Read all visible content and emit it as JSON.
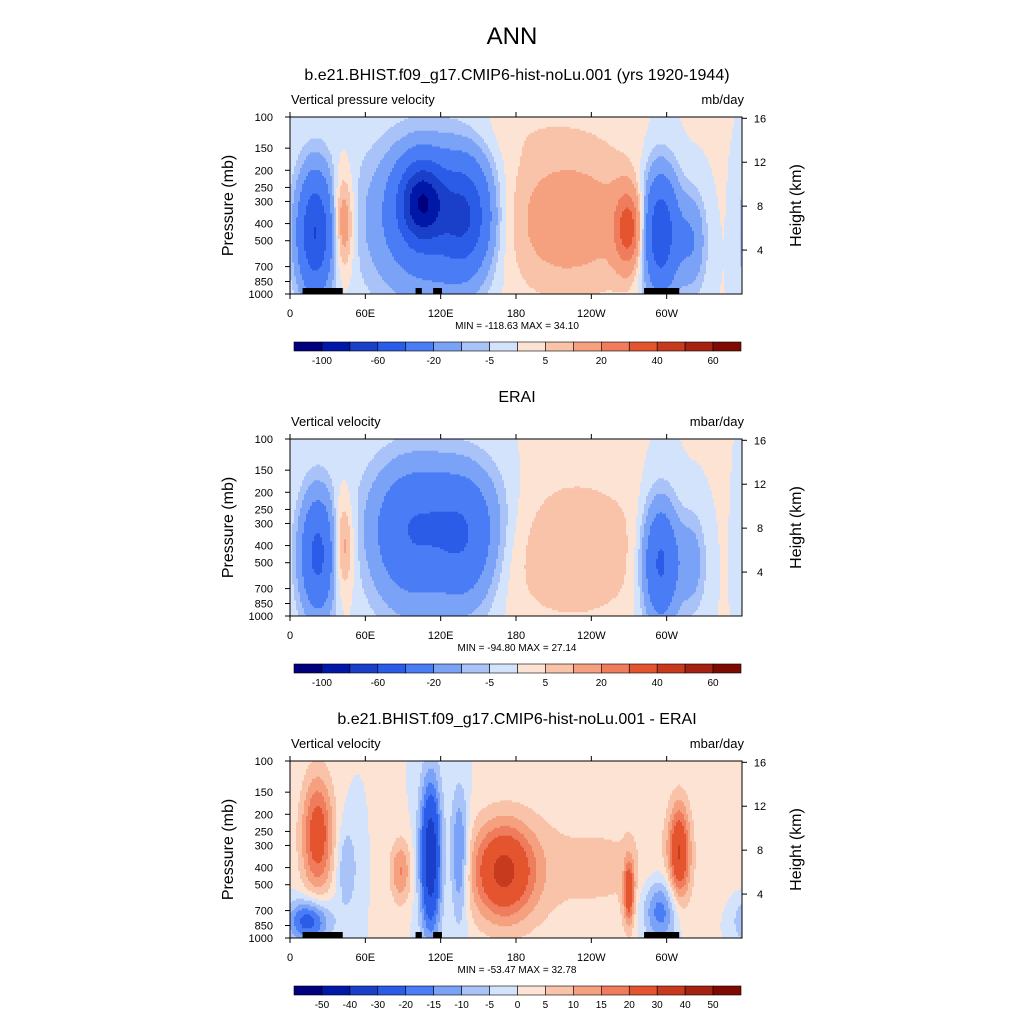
{
  "figure": {
    "main_title": "ANN",
    "colors": {
      "obs_scale": [
        "#00007f",
        "#0018a8",
        "#1a3fc8",
        "#2a5ce8",
        "#4a7cf5",
        "#7aa2f7",
        "#a9c3f9",
        "#d4e3fc",
        "#fde3d3",
        "#f9c3a9",
        "#f5a17f",
        "#ef7c5c",
        "#e4552f",
        "#c83a1e",
        "#a52211",
        "#7f0a02"
      ],
      "diff_scale": [
        "#00007f",
        "#0018a8",
        "#1a3fc8",
        "#2a5ce8",
        "#4a7cf5",
        "#7aa2f7",
        "#a9c3f9",
        "#d4e3fc",
        "#fde3d3",
        "#f9c3a9",
        "#f5a17f",
        "#ef7c5c",
        "#e4552f",
        "#c83a1e",
        "#a52211",
        "#7f0a02"
      ],
      "land_mask": "#000000"
    }
  },
  "chart_data": [
    {
      "type": "heatmap",
      "title": "b.e21.BHIST.f09_g17.CMIP6-hist-noLu.001 (yrs 1920-1944)",
      "left_label": "Vertical pressure velocity",
      "right_label": "mb/day",
      "ylabel": "Pressure (mb)",
      "ylabel_right": "Height (km)",
      "x_ticks": [
        "0",
        "60E",
        "120E",
        "180",
        "120W",
        "60W"
      ],
      "x_tick_lon": [
        0,
        60,
        120,
        180,
        240,
        300
      ],
      "xlim": [
        0,
        360
      ],
      "y_ticks": [
        "100",
        "150",
        "200",
        "250",
        "300",
        "400",
        "500",
        "700",
        "850",
        "1000"
      ],
      "y_tick_p": [
        100,
        150,
        200,
        250,
        300,
        400,
        500,
        700,
        850,
        1000
      ],
      "ylim": [
        1000,
        100
      ],
      "y_scale": "log",
      "y_ticks_right": [
        "16",
        "12",
        "8",
        "4"
      ],
      "y_tick_km": [
        16,
        12,
        8,
        4
      ],
      "stats": "MIN = -118.63  MAX =  34.10",
      "colorbar_labels": [
        "-100",
        "-60",
        "-20",
        "-5",
        "5",
        "20",
        "40",
        "60"
      ],
      "colorbar_label_boxes": [
        1,
        3,
        5,
        7,
        9,
        11,
        13,
        15
      ],
      "min": -118.63,
      "max": 34.1,
      "land": [
        [
          10,
          32
        ],
        [
          28,
          36
        ],
        [
          35,
          42
        ],
        [
          100,
          105
        ],
        [
          114,
          121
        ],
        [
          282,
          310
        ]
      ],
      "blobs": [
        {
          "lon": 20,
          "p": 450,
          "w": 10,
          "h": 1.1,
          "v": -60
        },
        {
          "lon": 42,
          "p": 400,
          "w": 6,
          "h": 0.9,
          "v": 22
        },
        {
          "lon": 110,
          "p": 380,
          "w": 32,
          "h": 1.4,
          "v": -35
        },
        {
          "lon": 105,
          "p": 300,
          "w": 12,
          "h": 0.7,
          "v": -70
        },
        {
          "lon": 140,
          "p": 360,
          "w": 14,
          "h": 1.0,
          "v": -45
        },
        {
          "lon": 220,
          "p": 380,
          "w": 45,
          "h": 1.4,
          "v": 15
        },
        {
          "lon": 270,
          "p": 430,
          "w": 8,
          "h": 0.7,
          "v": 32
        },
        {
          "lon": 295,
          "p": 450,
          "w": 10,
          "h": 1.1,
          "v": -60
        },
        {
          "lon": 320,
          "p": 500,
          "w": 8,
          "h": 0.9,
          "v": -20
        },
        {
          "lon": 180,
          "p": 120,
          "w": 60,
          "h": 0.5,
          "v": 2
        }
      ]
    },
    {
      "type": "heatmap",
      "title": "ERAI",
      "left_label": "Vertical velocity",
      "right_label": "mbar/day",
      "ylabel": "Pressure (mb)",
      "ylabel_right": "Height (km)",
      "x_ticks": [
        "0",
        "60E",
        "120E",
        "180",
        "120W",
        "60W"
      ],
      "x_tick_lon": [
        0,
        60,
        120,
        180,
        240,
        300
      ],
      "xlim": [
        0,
        360
      ],
      "y_ticks": [
        "100",
        "150",
        "200",
        "250",
        "300",
        "400",
        "500",
        "700",
        "850",
        "1000"
      ],
      "y_tick_p": [
        100,
        150,
        200,
        250,
        300,
        400,
        500,
        700,
        850,
        1000
      ],
      "ylim": [
        1000,
        100
      ],
      "y_scale": "log",
      "y_ticks_right": [
        "16",
        "12",
        "8",
        "4"
      ],
      "y_tick_km": [
        16,
        12,
        8,
        4
      ],
      "stats": "MIN = -94.80  MAX =  27.14",
      "colorbar_labels": [
        "-100",
        "-60",
        "-20",
        "-5",
        "5",
        "20",
        "40",
        "60"
      ],
      "colorbar_label_boxes": [
        1,
        3,
        5,
        7,
        9,
        11,
        13,
        15
      ],
      "min": -94.8,
      "max": 27.14,
      "land": [],
      "blobs": [
        {
          "lon": 22,
          "p": 450,
          "w": 10,
          "h": 1.1,
          "v": -45
        },
        {
          "lon": 42,
          "p": 400,
          "w": 6,
          "h": 0.9,
          "v": 18
        },
        {
          "lon": 95,
          "p": 380,
          "w": 22,
          "h": 1.3,
          "v": -30
        },
        {
          "lon": 140,
          "p": 400,
          "w": 18,
          "h": 1.2,
          "v": -30
        },
        {
          "lon": 120,
          "p": 250,
          "w": 35,
          "h": 1.0,
          "v": -15
        },
        {
          "lon": 225,
          "p": 420,
          "w": 45,
          "h": 1.4,
          "v": 10
        },
        {
          "lon": 295,
          "p": 500,
          "w": 10,
          "h": 1.1,
          "v": -45
        },
        {
          "lon": 320,
          "p": 500,
          "w": 8,
          "h": 0.9,
          "v": -15
        }
      ]
    },
    {
      "type": "heatmap",
      "title": "b.e21.BHIST.f09_g17.CMIP6-hist-noLu.001 - ERAI",
      "left_label": "Vertical velocity",
      "right_label": "mbar/day",
      "ylabel": "Pressure (mb)",
      "ylabel_right": "Height (km)",
      "x_ticks": [
        "0",
        "60E",
        "120E",
        "180",
        "120W",
        "60W"
      ],
      "x_tick_lon": [
        0,
        60,
        120,
        180,
        240,
        300
      ],
      "xlim": [
        0,
        360
      ],
      "y_ticks": [
        "100",
        "150",
        "200",
        "250",
        "300",
        "400",
        "500",
        "700",
        "850",
        "1000"
      ],
      "y_tick_p": [
        100,
        150,
        200,
        250,
        300,
        400,
        500,
        700,
        850,
        1000
      ],
      "ylim": [
        1000,
        100
      ],
      "y_scale": "log",
      "y_ticks_right": [
        "16",
        "12",
        "8",
        "4"
      ],
      "y_tick_km": [
        16,
        12,
        8,
        4
      ],
      "stats": "MIN = -53.47  MAX =  32.78",
      "colorbar_labels": [
        "-50",
        "-40",
        "-30",
        "-20",
        "-15",
        "-10",
        "-5",
        "0",
        "5",
        "10",
        "15",
        "20",
        "30",
        "40",
        "50"
      ],
      "colorbar_label_boxes": [
        1,
        2,
        3,
        4,
        5,
        6,
        7,
        8,
        9,
        10,
        11,
        12,
        13,
        14,
        15
      ],
      "min": -53.47,
      "max": 32.78,
      "land": [
        [
          10,
          32
        ],
        [
          28,
          36
        ],
        [
          35,
          42
        ],
        [
          100,
          105
        ],
        [
          114,
          121
        ],
        [
          282,
          310
        ]
      ],
      "blobs": [
        {
          "lon": 22,
          "p": 260,
          "w": 9,
          "h": 1.1,
          "v": 25
        },
        {
          "lon": 45,
          "p": 400,
          "w": 6,
          "h": 0.8,
          "v": -10
        },
        {
          "lon": 88,
          "p": 420,
          "w": 6,
          "h": 0.6,
          "v": 15
        },
        {
          "lon": 112,
          "p": 350,
          "w": 6,
          "h": 1.4,
          "v": -40
        },
        {
          "lon": 135,
          "p": 350,
          "w": 5,
          "h": 1.2,
          "v": -20
        },
        {
          "lon": 170,
          "p": 420,
          "w": 18,
          "h": 0.9,
          "v": 30
        },
        {
          "lon": 240,
          "p": 400,
          "w": 60,
          "h": 1.3,
          "v": 6
        },
        {
          "lon": 270,
          "p": 550,
          "w": 3,
          "h": 0.6,
          "v": 25
        },
        {
          "lon": 310,
          "p": 330,
          "w": 6,
          "h": 0.9,
          "v": 28
        },
        {
          "lon": 295,
          "p": 700,
          "w": 10,
          "h": 0.6,
          "v": -20
        },
        {
          "lon": 15,
          "p": 800,
          "w": 12,
          "h": 0.4,
          "v": -25
        }
      ]
    }
  ]
}
